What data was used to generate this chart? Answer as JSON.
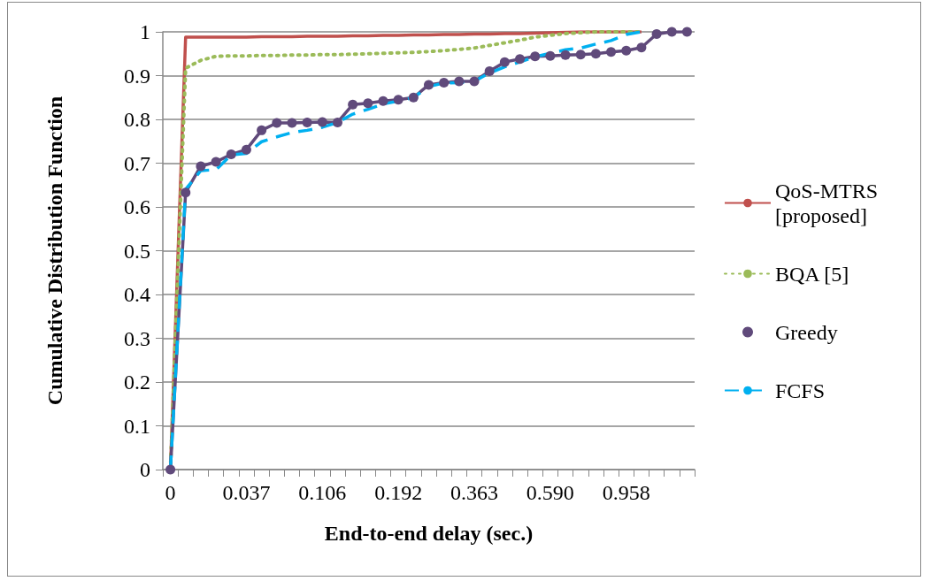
{
  "chart_data": {
    "type": "line",
    "xlabel": "End-to-end delay (sec.)",
    "ylabel": "Cumulative Distribution Function",
    "categories": [
      "0",
      null,
      null,
      null,
      null,
      "0.037",
      null,
      null,
      null,
      null,
      "0.106",
      null,
      null,
      null,
      null,
      "0.192",
      null,
      null,
      null,
      null,
      "0.363",
      null,
      null,
      null,
      null,
      "0.590",
      null,
      null,
      null,
      null,
      "0.958",
      null,
      null,
      null,
      null
    ],
    "ylim": [
      0,
      1
    ],
    "yticks": [
      0,
      0.1,
      0.2,
      0.3,
      0.4,
      0.5,
      0.6,
      0.7,
      0.8,
      0.9,
      1
    ],
    "grid": "y",
    "legend": "right",
    "series": [
      {
        "name": "QoS-MTRS [proposed]",
        "color": "#c0504d",
        "line_style": "solid",
        "marker": "none",
        "values": [
          0,
          0.988,
          0.988,
          0.988,
          0.988,
          0.988,
          0.989,
          0.989,
          0.989,
          0.99,
          0.99,
          0.99,
          0.991,
          0.991,
          0.992,
          0.992,
          0.993,
          0.993,
          0.994,
          0.994,
          0.995,
          0.995,
          0.996,
          0.996,
          0.997,
          0.998,
          0.999,
          1,
          1,
          1,
          1,
          1,
          null,
          null,
          null
        ]
      },
      {
        "name": "BQA [5]",
        "color": "#9bbb59",
        "line_style": "dotted",
        "marker": "none",
        "values": [
          0,
          0.917,
          0.935,
          0.944,
          0.945,
          0.945,
          0.946,
          0.946,
          0.947,
          0.947,
          0.948,
          0.948,
          0.949,
          0.95,
          0.951,
          0.952,
          0.953,
          0.955,
          0.957,
          0.96,
          0.963,
          0.969,
          0.975,
          0.981,
          0.988,
          0.992,
          0.996,
          0.998,
          1,
          1,
          1,
          1,
          null,
          null,
          null
        ]
      },
      {
        "name": "Greedy",
        "color": "#604a7b",
        "line_style": "solid",
        "marker": "circle",
        "values": [
          0,
          0.633,
          0.693,
          0.703,
          0.72,
          0.731,
          0.775,
          0.792,
          0.792,
          0.793,
          0.794,
          0.793,
          0.834,
          0.837,
          0.842,
          0.845,
          0.85,
          0.879,
          0.884,
          0.887,
          0.887,
          0.91,
          0.931,
          0.938,
          0.944,
          0.945,
          0.947,
          0.948,
          0.95,
          0.954,
          0.957,
          0.964,
          0.995,
          1,
          1
        ]
      },
      {
        "name": "FCFS",
        "color": "#00b0f0",
        "line_style": "dashed",
        "marker": "none",
        "values": [
          0,
          0.64,
          0.683,
          0.685,
          0.719,
          0.722,
          0.749,
          0.76,
          0.77,
          0.775,
          0.782,
          0.793,
          0.812,
          0.823,
          0.835,
          0.842,
          0.85,
          0.875,
          0.883,
          0.884,
          0.887,
          0.906,
          0.92,
          0.931,
          0.943,
          0.951,
          0.959,
          0.963,
          0.972,
          0.98,
          0.994,
          1,
          null,
          null,
          null
        ]
      }
    ]
  }
}
